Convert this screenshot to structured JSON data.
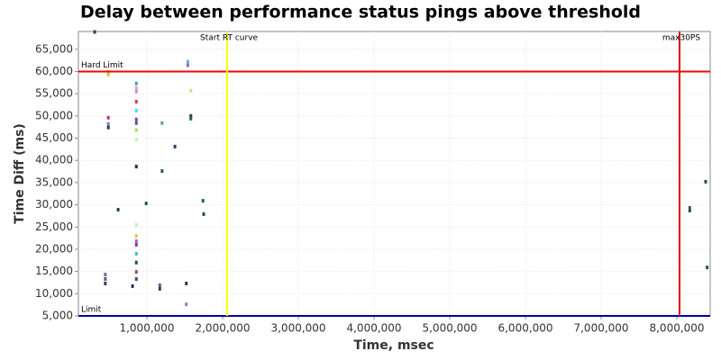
{
  "chart_data": {
    "type": "scatter",
    "title": "Delay between performance status pings above threshold",
    "x_label": "Time, msec",
    "y_label": "Time Diff (ms)",
    "xlim": [
      95000,
      8440000
    ],
    "ylim": [
      5000,
      69000
    ],
    "xticks": [
      {
        "value": 1000000,
        "label": "1,000,000"
      },
      {
        "value": 2000000,
        "label": "2,000,000"
      },
      {
        "value": 3000000,
        "label": "3,000,000"
      },
      {
        "value": 4000000,
        "label": "4,000,000"
      },
      {
        "value": 5000000,
        "label": "5,000,000"
      },
      {
        "value": 6000000,
        "label": "6,000,000"
      },
      {
        "value": 7000000,
        "label": "7,000,000"
      },
      {
        "value": 8000000,
        "label": "8,000,000"
      }
    ],
    "yticks": [
      {
        "value": 5000,
        "label": "5,000"
      },
      {
        "value": 10000,
        "label": "10,000"
      },
      {
        "value": 15000,
        "label": "15,000"
      },
      {
        "value": 20000,
        "label": "20,000"
      },
      {
        "value": 25000,
        "label": "25,000"
      },
      {
        "value": 30000,
        "label": "30,000"
      },
      {
        "value": 35000,
        "label": "35,000"
      },
      {
        "value": 40000,
        "label": "40,000"
      },
      {
        "value": 45000,
        "label": "45,000"
      },
      {
        "value": 50000,
        "label": "50,000"
      },
      {
        "value": 55000,
        "label": "55,000"
      },
      {
        "value": 60000,
        "label": "60,000"
      },
      {
        "value": 65000,
        "label": "65,000"
      }
    ],
    "grid": true,
    "hlines": [
      {
        "value": 60000,
        "label": "Hard Limit",
        "color": "#ff0000"
      },
      {
        "value": 5000,
        "label": "Limit",
        "color": "#0000aa"
      }
    ],
    "vlines": [
      {
        "value": 2060000,
        "label": "Start RT curve",
        "color": "#ffff00"
      },
      {
        "value": 8035000,
        "label": "max30PS",
        "color": "#dd0000"
      }
    ],
    "x": [
      310000,
      490000,
      490000,
      490000,
      490000,
      490000,
      450000,
      450000,
      450000,
      620000,
      860000,
      860000,
      860000,
      860000,
      860000,
      860000,
      860000,
      860000,
      860000,
      860000,
      860000,
      860000,
      860000,
      860000,
      860000,
      860000,
      860000,
      860000,
      810000,
      990000,
      1200000,
      1170000,
      1170000,
      1200000,
      1370000,
      1540000,
      1540000,
      1580000,
      1580000,
      1580000,
      1520000,
      1520000,
      1740000,
      1750000,
      8170000,
      8170000,
      8380000,
      8400000
    ],
    "values": [
      68900,
      59900,
      59300,
      49600,
      48200,
      47400,
      14300,
      13300,
      12300,
      28900,
      57300,
      56300,
      55500,
      53200,
      51200,
      49200,
      48400,
      46800,
      44700,
      38600,
      25500,
      23000,
      21800,
      21000,
      19000,
      17000,
      14900,
      13300,
      11700,
      30300,
      48400,
      11900,
      11100,
      37600,
      43100,
      62200,
      61400,
      55700,
      50000,
      49400,
      7600,
      12300,
      30900,
      27900,
      29300,
      28700,
      35200,
      15900
    ],
    "colors": [
      "#1a4a6a",
      "#c8a060",
      "#e0c040",
      "#c03090",
      "#8080c0",
      "#204050",
      "#6070a0",
      "#705090",
      "#304060",
      "#205040",
      "#50a0a0",
      "#e0a0e0",
      "#d090b0",
      "#e03060",
      "#40e0e0",
      "#a04080",
      "#4060a0",
      "#a0e060",
      "#d0f0a0",
      "#1a3a3a",
      "#c0f0c0",
      "#e0c060",
      "#a060e0",
      "#8040a0",
      "#40c0c0",
      "#205050",
      "#806040",
      "#405060",
      "#203060",
      "#205060",
      "#60a0a0",
      "#5060a0",
      "#304040",
      "#306050",
      "#204060",
      "#80a0e0",
      "#6080c0",
      "#d0e080",
      "#304040",
      "#206050",
      "#8080e0",
      "#204050",
      "#206060",
      "#205060",
      "#406040",
      "#305050",
      "#205050",
      "#205060"
    ]
  }
}
